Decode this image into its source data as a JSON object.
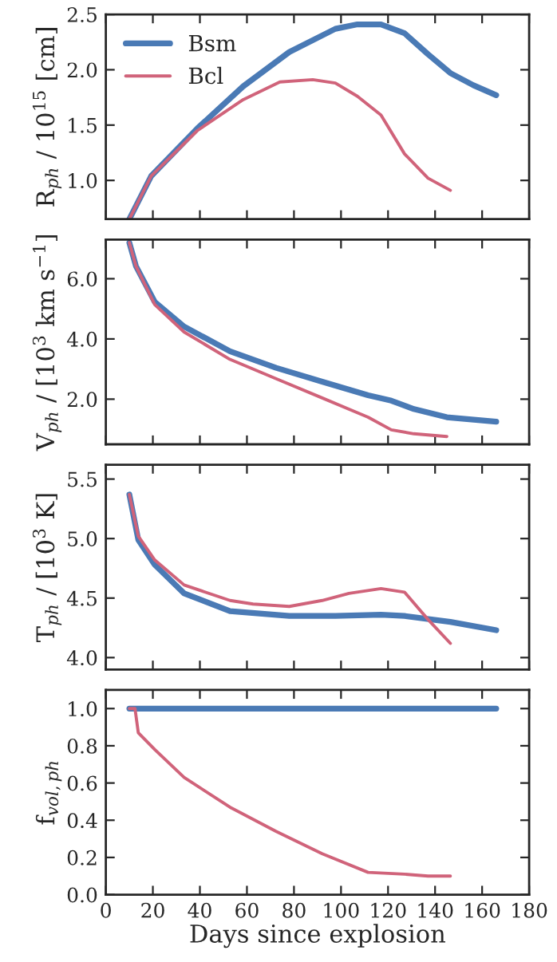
{
  "chart_data": [
    {
      "type": "line",
      "ylabel": "R$_{ph}$ / 10$^{15}$ [cm]",
      "legend": "top left",
      "grid": false,
      "tick_labels": "y",
      "xlim": [
        0,
        180
      ],
      "xticks": [
        0,
        20,
        40,
        60,
        80,
        100,
        120,
        140,
        160,
        180
      ],
      "ylim": [
        0.65,
        2.5
      ],
      "yticks": [
        {
          "value": 1.0,
          "label": "1.0"
        },
        {
          "value": 1.5,
          "label": "1.5"
        },
        {
          "value": 2.0,
          "label": "2.0"
        },
        {
          "value": 2.5,
          "label": "2.5"
        }
      ],
      "series": [
        {
          "name": "Bsm",
          "color": "#4a7ab5",
          "x": [
            10,
            19.3,
            38.9,
            58.4,
            78,
            97.6,
            107,
            117,
            127,
            137,
            146.5,
            156.3,
            166
          ],
          "values": [
            0.65,
            1.04,
            1.47,
            1.85,
            2.16,
            2.37,
            2.41,
            2.41,
            2.33,
            2.14,
            1.97,
            1.86,
            1.77
          ]
        },
        {
          "name": "Bcl",
          "color": "#d0637a",
          "x": [
            10,
            19.3,
            38.9,
            58.4,
            74,
            88,
            97.6,
            107,
            117,
            127,
            137,
            146.5
          ],
          "values": [
            0.65,
            1.04,
            1.45,
            1.73,
            1.89,
            1.91,
            1.88,
            1.76,
            1.59,
            1.24,
            1.02,
            0.91
          ]
        }
      ]
    },
    {
      "type": "line",
      "ylabel": "V$_{ph}$ / [10$^{3}$ km s$^{−1}$]",
      "grid": false,
      "tick_labels": "y",
      "xlim": [
        0,
        180
      ],
      "xticks": [
        0,
        20,
        40,
        60,
        80,
        100,
        120,
        140,
        160,
        180
      ],
      "ylim": [
        0.5,
        7.3
      ],
      "yticks": [
        {
          "value": 2.0,
          "label": "2.0"
        },
        {
          "value": 4.0,
          "label": "4.0"
        },
        {
          "value": 6.0,
          "label": "6.0"
        }
      ],
      "series": [
        {
          "color": "#4a7ab5",
          "x": [
            10,
            12.8,
            20.8,
            33.3,
            52.8,
            72.4,
            92,
            111.5,
            121.4,
            131,
            145,
            166
          ],
          "values": [
            7.2,
            6.42,
            5.23,
            4.41,
            3.59,
            3.04,
            2.58,
            2.13,
            1.95,
            1.67,
            1.4,
            1.25
          ]
        },
        {
          "color": "#d0637a",
          "x": [
            10,
            12.8,
            20.8,
            33.3,
            52.8,
            72.4,
            92,
            111.5,
            121.4,
            131,
            145
          ],
          "values": [
            7.2,
            6.42,
            5.14,
            4.23,
            3.32,
            2.68,
            2.04,
            1.4,
            0.98,
            0.85,
            0.76
          ]
        }
      ]
    },
    {
      "type": "line",
      "ylabel": "T$_{ph}$ / [10$^{3}$ K]",
      "grid": false,
      "tick_labels": "y",
      "xlim": [
        0,
        180
      ],
      "xticks": [
        0,
        20,
        40,
        60,
        80,
        100,
        120,
        140,
        160,
        180
      ],
      "ylim": [
        3.9,
        5.62
      ],
      "yticks": [
        {
          "value": 4.0,
          "label": "4.0"
        },
        {
          "value": 4.5,
          "label": "4.5"
        },
        {
          "value": 5.0,
          "label": "5.0"
        },
        {
          "value": 5.5,
          "label": "5.5"
        }
      ],
      "series": [
        {
          "color": "#4a7ab5",
          "x": [
            10,
            13.8,
            20.8,
            33.3,
            52.8,
            78,
            97.6,
            117,
            127,
            146.5,
            166
          ],
          "values": [
            5.37,
            4.99,
            4.78,
            4.54,
            4.39,
            4.35,
            4.35,
            4.36,
            4.35,
            4.3,
            4.23
          ]
        },
        {
          "color": "#d0637a",
          "x": [
            10,
            13.8,
            20.8,
            33.3,
            52.8,
            62.6,
            78,
            92,
            103.4,
            117,
            127,
            137,
            146.5
          ],
          "values": [
            5.37,
            5.02,
            4.82,
            4.61,
            4.48,
            4.45,
            4.43,
            4.48,
            4.54,
            4.58,
            4.55,
            4.32,
            4.12
          ]
        }
      ]
    },
    {
      "type": "line",
      "ylabel": "f$_{vol,ph}$",
      "xlabel": "Days since explosion",
      "grid": false,
      "xlim": [
        0,
        180
      ],
      "xticks": [
        0,
        20,
        40,
        60,
        80,
        100,
        120,
        140,
        160,
        180
      ],
      "ylim": [
        0,
        1.1
      ],
      "yticks": [
        {
          "value": 0,
          "label": "0.0"
        },
        {
          "value": 0.2,
          "label": "0.2"
        },
        {
          "value": 0.4,
          "label": "0.4"
        },
        {
          "value": 0.6,
          "label": "0.6"
        },
        {
          "value": 0.8,
          "label": "0.8"
        },
        {
          "value": 1.0,
          "label": "1.0"
        }
      ],
      "series": [
        {
          "color": "#4a7ab5",
          "x": [
            10,
            166
          ],
          "values": [
            1.0,
            1.0
          ]
        },
        {
          "color": "#d0637a",
          "x": [
            10,
            12.4,
            13.8,
            20.8,
            33.3,
            52.8,
            72.4,
            92,
            111.5,
            127,
            137,
            146.5
          ],
          "values": [
            1.0,
            1.0,
            0.87,
            0.78,
            0.63,
            0.47,
            0.34,
            0.22,
            0.12,
            0.11,
            0.1,
            0.1
          ]
        }
      ]
    }
  ]
}
